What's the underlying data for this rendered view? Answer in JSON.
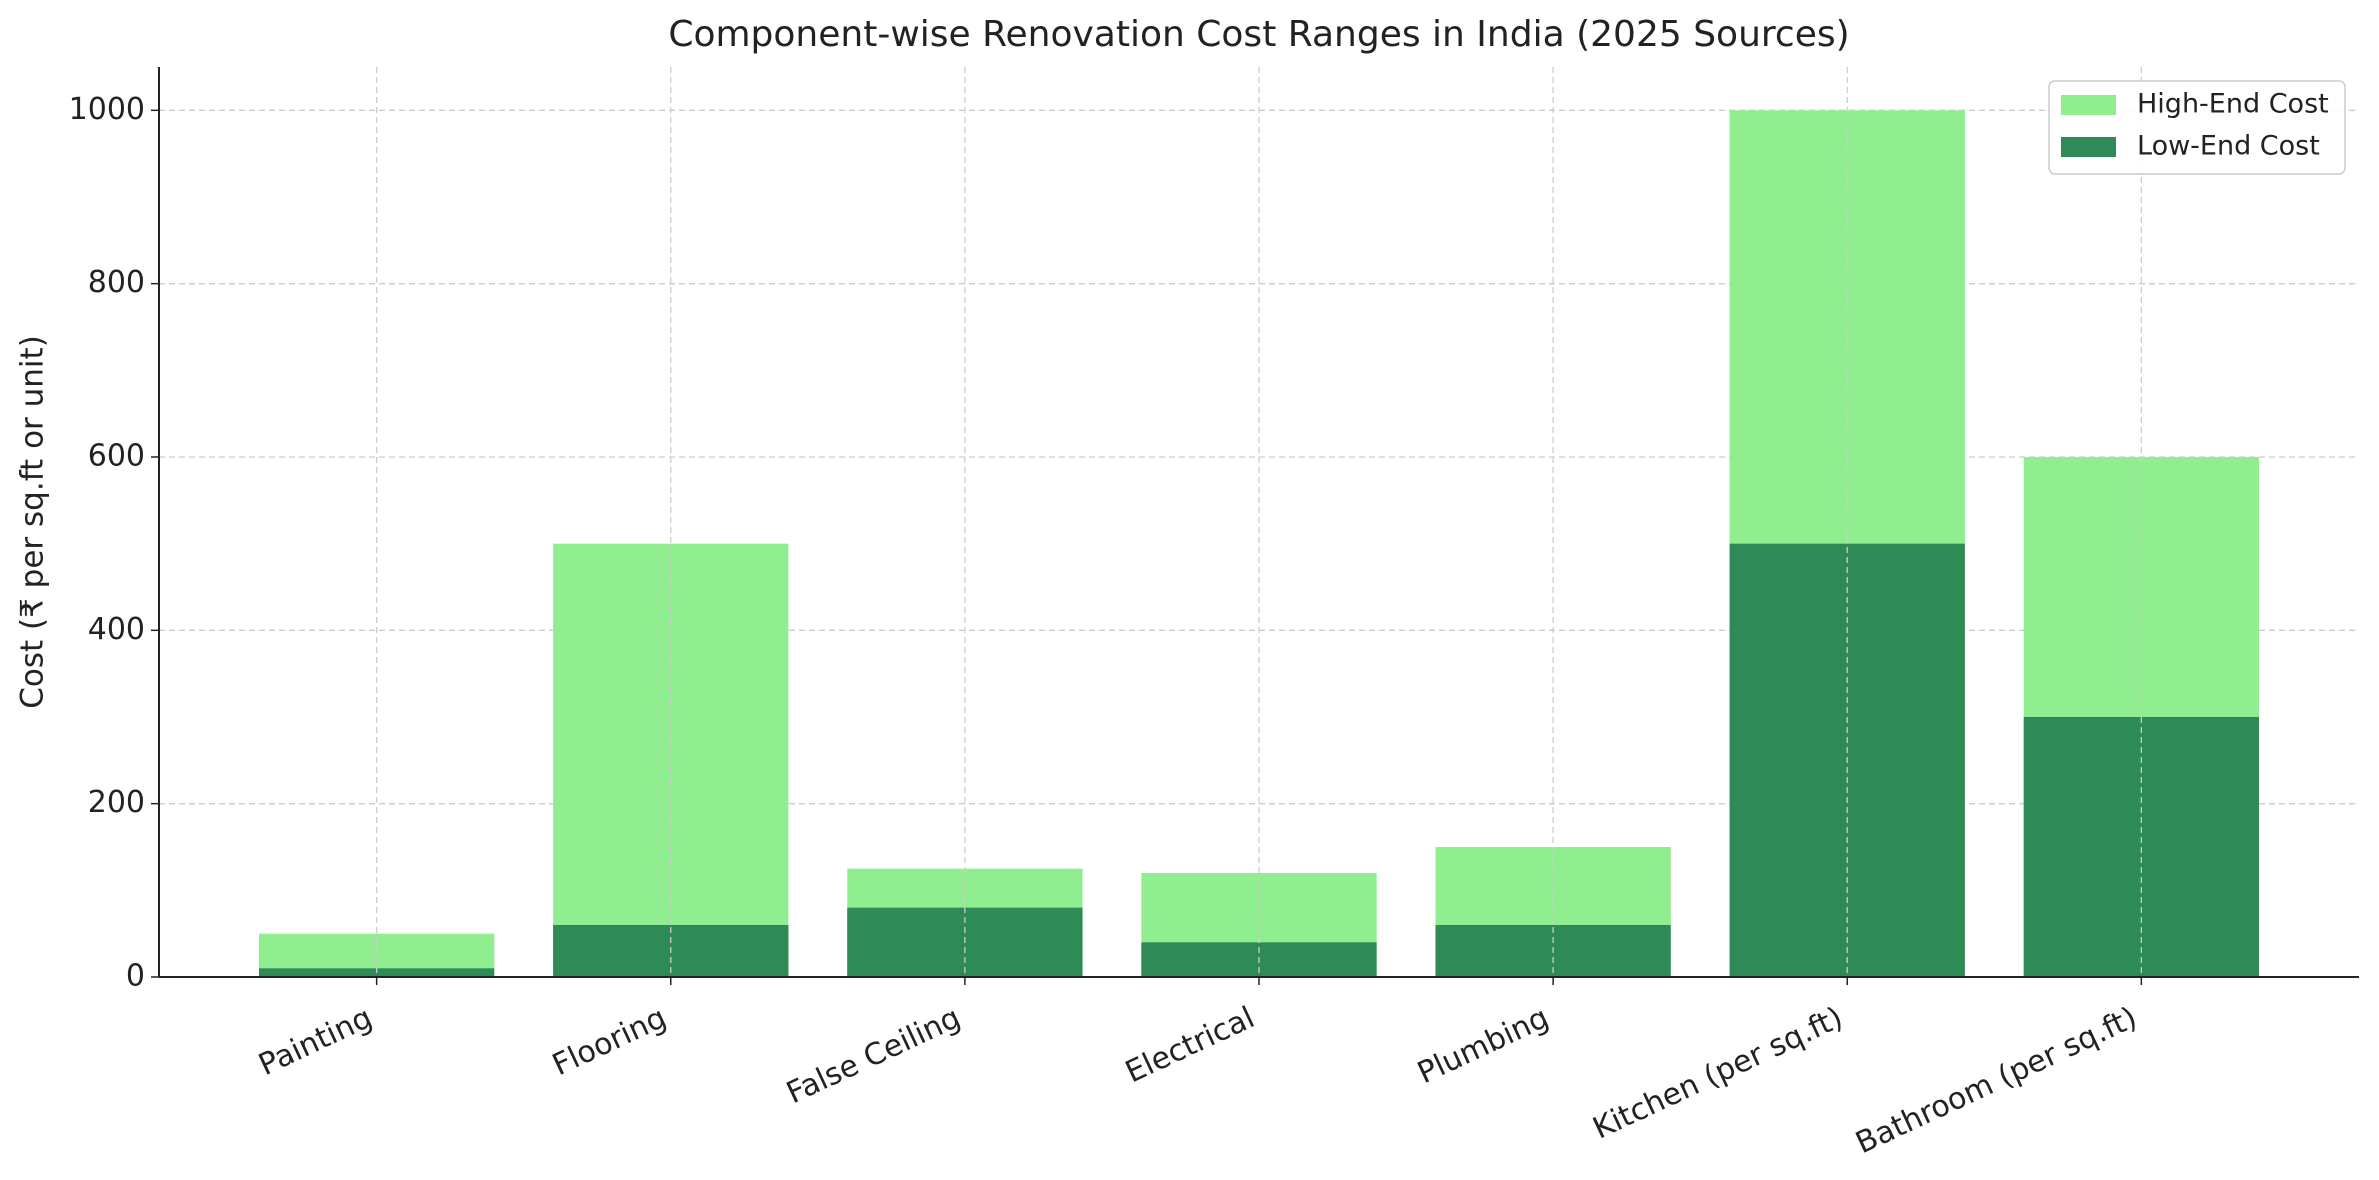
{
  "chart_data": {
    "type": "bar",
    "title": "Component-wise Renovation Cost Ranges in India (2025 Sources)",
    "y_label": "Cost (₹ per sq.ft or unit)",
    "categories": [
      "Painting",
      "Flooring",
      "False Ceiling",
      "Electrical",
      "Plumbing",
      "Kitchen (per sq.ft)",
      "Bathroom (per sq.ft)"
    ],
    "series": [
      {
        "name": "High-End Cost",
        "color": "#90ee90",
        "values": [
          50,
          500,
          125,
          120,
          150,
          1000,
          600
        ]
      },
      {
        "name": "Low-End Cost",
        "color": "#2e8b57",
        "values": [
          10,
          60,
          80,
          40,
          60,
          500,
          300
        ]
      }
    ],
    "ylim": [
      0,
      1050
    ],
    "yticks": [
      0,
      200,
      400,
      600,
      800,
      1000
    ],
    "grid": true,
    "legend": "upper right"
  }
}
